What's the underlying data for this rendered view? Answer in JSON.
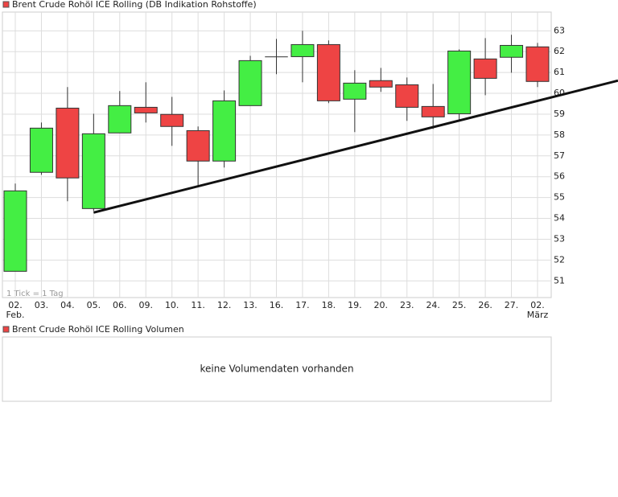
{
  "chart_data": {
    "type": "candlestick",
    "legend": "Brent Crude Rohöl ICE Rolling (DB Indikation Rohstoffe)",
    "note": "1 Tick = 1 Tag",
    "categories": [
      "02.",
      "03.",
      "04.",
      "05.",
      "06.",
      "09.",
      "10.",
      "11.",
      "12.",
      "13.",
      "16.",
      "17.",
      "18.",
      "19.",
      "20.",
      "23.",
      "24.",
      "25.",
      "26.",
      "27.",
      "02."
    ],
    "x_sublabels": [
      "Feb.",
      null,
      null,
      null,
      null,
      null,
      null,
      null,
      null,
      null,
      null,
      null,
      null,
      null,
      null,
      null,
      null,
      null,
      null,
      null,
      "März"
    ],
    "open": [
      51.46,
      56.21,
      59.29,
      54.47,
      58.1,
      59.33,
      58.99,
      58.21,
      56.75,
      59.41,
      61.76,
      61.76,
      62.34,
      59.72,
      60.61,
      60.41,
      59.37,
      59.02,
      61.65,
      61.73,
      62.23
    ],
    "high": [
      55.67,
      58.6,
      60.3,
      59.02,
      60.11,
      60.53,
      59.83,
      58.41,
      60.14,
      61.8,
      62.61,
      63.0,
      62.54,
      61.11,
      61.22,
      60.76,
      60.45,
      62.11,
      62.65,
      62.81,
      62.42
    ],
    "low": [
      51.46,
      56.09,
      54.82,
      54.36,
      58.1,
      58.6,
      57.48,
      55.51,
      56.44,
      59.41,
      60.92,
      60.53,
      59.53,
      58.14,
      60.07,
      58.68,
      58.29,
      58.68,
      59.91,
      60.99,
      60.3
    ],
    "close": [
      55.32,
      58.33,
      55.94,
      58.06,
      59.41,
      59.06,
      58.41,
      56.75,
      59.64,
      61.57,
      61.76,
      62.34,
      59.64,
      60.49,
      60.3,
      59.33,
      58.87,
      62.03,
      60.72,
      62.3,
      60.57
    ],
    "up_color": "#44ee44",
    "down_color": "#ee4444",
    "trendline": {
      "x": [
        3,
        23.08
      ],
      "y": [
        54.28,
        60.61
      ]
    },
    "ylim": [
      50.2,
      63.9
    ],
    "yticks": [
      51,
      52,
      53,
      54,
      55,
      56,
      57,
      58,
      59,
      60,
      61,
      62,
      63
    ],
    "grid": true
  },
  "volume_panel": {
    "legend": "Brent Crude Rohöl ICE Rolling Volumen",
    "message": "keine Volumendaten vorhanden"
  }
}
